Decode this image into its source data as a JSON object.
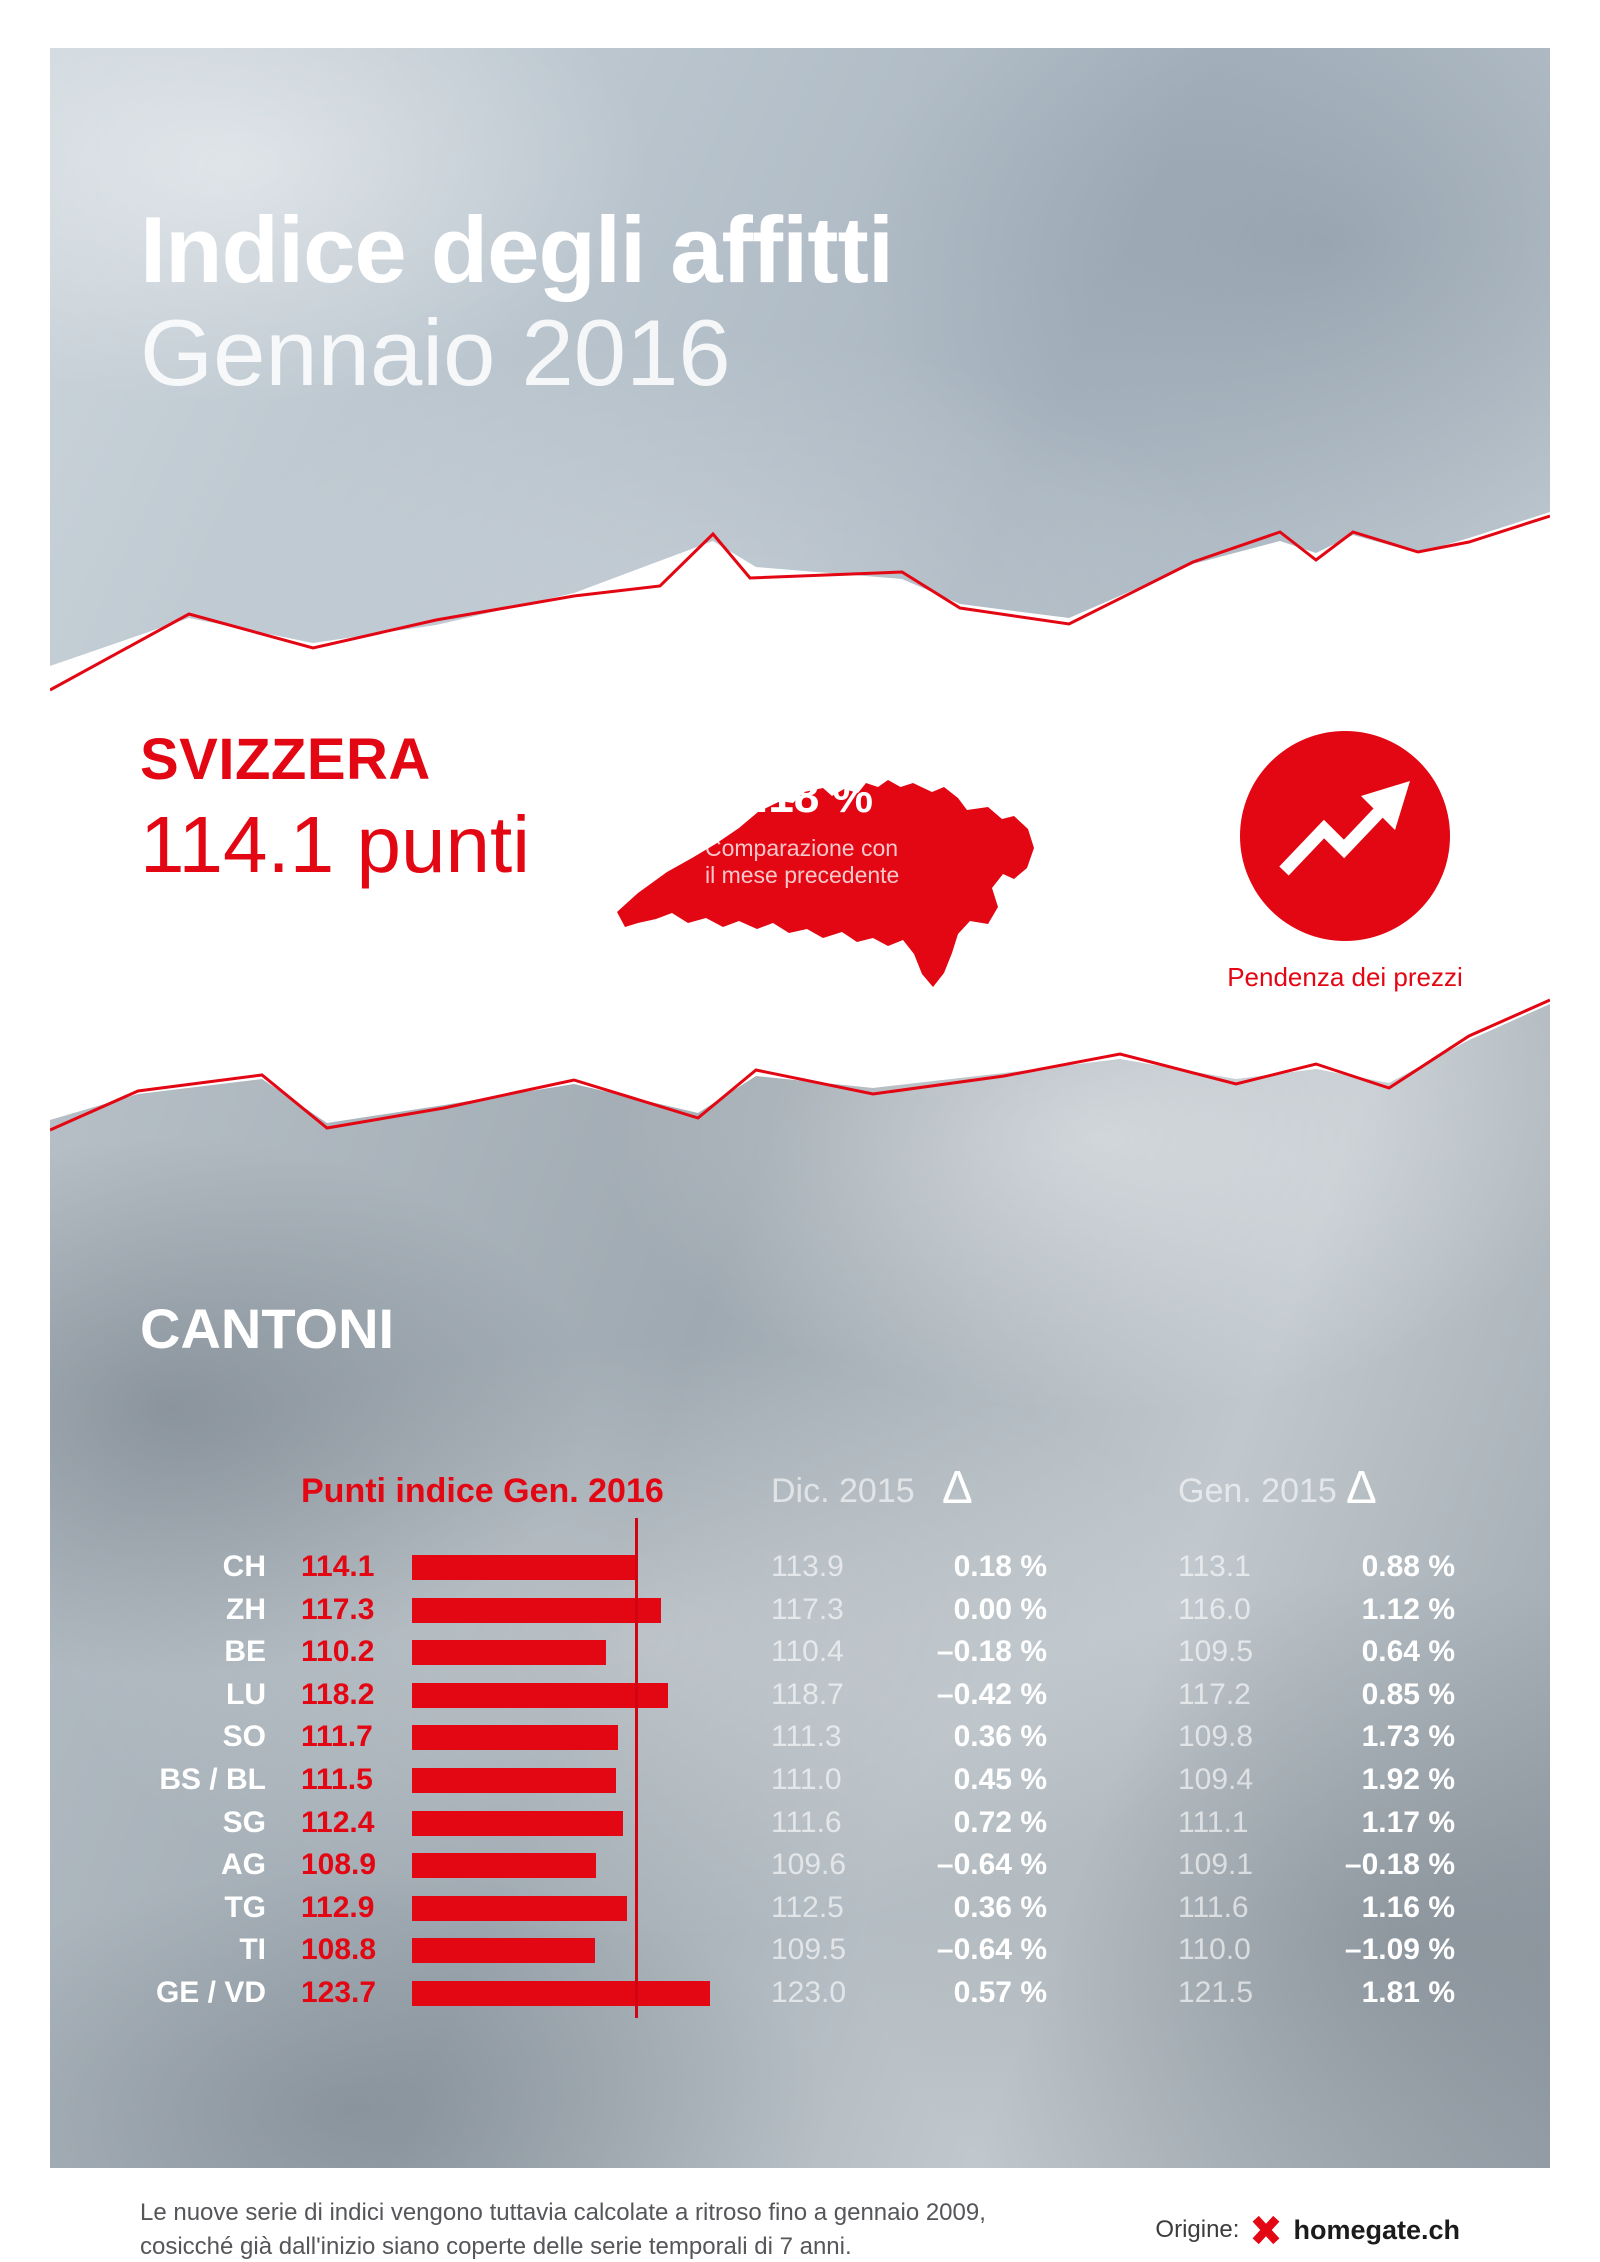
{
  "header": {
    "title": "Indice degli affitti",
    "subtitle": "Gennaio 2016"
  },
  "switzerland": {
    "label": "SVIZZERA",
    "points": "114.1 punti",
    "delta": "+0.18 %",
    "delta_note_line1": "Comparazione con",
    "delta_note_line2": "il mese precedente",
    "trend_label": "Pendenza dei prezzi"
  },
  "cantons": {
    "heading": "CANTONI",
    "columns": {
      "index": "Punti indice Gen. 2016",
      "dec": "Dic. 2015",
      "jan": "Gen. 2015",
      "delta_symbol": "Δ"
    },
    "rows": [
      {
        "canton": "CH",
        "index": "114.1",
        "value": 114.1,
        "dec": "113.9",
        "dec_delta": "0.18 %",
        "jan": "113.1",
        "jan_delta": "0.88 %"
      },
      {
        "canton": "ZH",
        "index": "117.3",
        "value": 117.3,
        "dec": "117.3",
        "dec_delta": "0.00 %",
        "jan": "116.0",
        "jan_delta": "1.12 %"
      },
      {
        "canton": "BE",
        "index": "110.2",
        "value": 110.2,
        "dec": "110.4",
        "dec_delta": "–0.18 %",
        "jan": "109.5",
        "jan_delta": "0.64 %"
      },
      {
        "canton": "LU",
        "index": "118.2",
        "value": 118.2,
        "dec": "118.7",
        "dec_delta": "–0.42 %",
        "jan": "117.2",
        "jan_delta": "0.85 %"
      },
      {
        "canton": "SO",
        "index": "111.7",
        "value": 111.7,
        "dec": "111.3",
        "dec_delta": "0.36 %",
        "jan": "109.8",
        "jan_delta": "1.73 %"
      },
      {
        "canton": "BS / BL",
        "index": "111.5",
        "value": 111.5,
        "dec": "111.0",
        "dec_delta": "0.45 %",
        "jan": "109.4",
        "jan_delta": "1.92 %"
      },
      {
        "canton": "SG",
        "index": "112.4",
        "value": 112.4,
        "dec": "111.6",
        "dec_delta": "0.72 %",
        "jan": "111.1",
        "jan_delta": "1.17 %"
      },
      {
        "canton": "AG",
        "index": "108.9",
        "value": 108.9,
        "dec": "109.6",
        "dec_delta": "–0.64 %",
        "jan": "109.1",
        "jan_delta": "–0.18 %"
      },
      {
        "canton": "TG",
        "index": "112.9",
        "value": 112.9,
        "dec": "112.5",
        "dec_delta": "0.36 %",
        "jan": "111.6",
        "jan_delta": "1.16 %"
      },
      {
        "canton": "TI",
        "index": "108.8",
        "value": 108.8,
        "dec": "109.5",
        "dec_delta": "–0.64 %",
        "jan": "110.0",
        "jan_delta": "–1.09 %"
      },
      {
        "canton": "GE / VD",
        "index": "123.7",
        "value": 123.7,
        "dec": "123.0",
        "dec_delta": "0.57 %",
        "jan": "121.5",
        "jan_delta": "1.81 %"
      }
    ]
  },
  "chart_data": {
    "type": "bar",
    "orientation": "horizontal",
    "title": "Indice degli affitti Gennaio 2016 — Cantoni",
    "categories": [
      "CH",
      "ZH",
      "BE",
      "LU",
      "SO",
      "BS / BL",
      "SG",
      "AG",
      "TG",
      "TI",
      "GE / VD"
    ],
    "series": [
      {
        "name": "Punti indice Gen. 2016",
        "values": [
          114.1,
          117.3,
          110.2,
          118.2,
          111.7,
          111.5,
          112.4,
          108.9,
          112.9,
          108.8,
          123.7
        ]
      },
      {
        "name": "Dic. 2015",
        "values": [
          113.9,
          117.3,
          110.4,
          118.7,
          111.3,
          111.0,
          111.6,
          109.6,
          112.5,
          109.5,
          123.0
        ]
      },
      {
        "name": "Δ vs Dic. 2015 (%)",
        "values": [
          0.18,
          0.0,
          -0.18,
          -0.42,
          0.36,
          0.45,
          0.72,
          -0.64,
          0.36,
          -0.64,
          0.57
        ]
      },
      {
        "name": "Gen. 2015",
        "values": [
          113.1,
          116.0,
          109.5,
          117.2,
          109.8,
          109.4,
          111.1,
          109.1,
          111.6,
          110.0,
          121.5
        ]
      },
      {
        "name": "Δ vs Gen. 2015 (%)",
        "values": [
          0.88,
          1.12,
          0.64,
          0.85,
          1.73,
          1.92,
          1.17,
          -0.18,
          1.16,
          -1.09,
          1.81
        ]
      }
    ],
    "reference_line": 114.1,
    "switzerland_total": {
      "points": 114.1,
      "delta_month_pct": 0.18
    },
    "legend_position": "none",
    "grid": false
  },
  "footer": {
    "note_line1": "Le nuove serie di indici vengono tuttavia calcolate a ritroso fino a gennaio 2009,",
    "note_line2": "cosicché già dall'inizio siano coperte delle serie temporali di 7 anni.",
    "source_label": "Origine:",
    "source_name": "homegate.ch"
  },
  "colors": {
    "accent": "#e30613"
  }
}
